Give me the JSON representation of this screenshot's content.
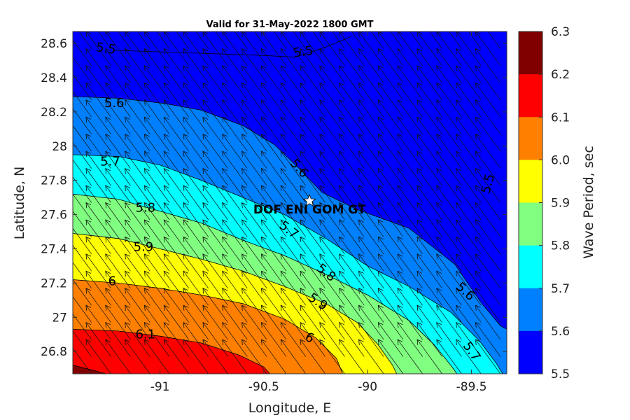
{
  "chart_data": {
    "type": "heatmap",
    "title": "Valid for 31-May-2022 1800 GMT",
    "xlabel": "Longitude, E",
    "ylabel": "Latitude, N",
    "xlim": [
      -91.42,
      -89.33
    ],
    "ylim": [
      26.67,
      28.67
    ],
    "x_ticks": [
      -91,
      -90.5,
      -90,
      -89.5
    ],
    "x_tick_labels": [
      "-91",
      "-90.5",
      "-90",
      "-89.5"
    ],
    "y_ticks": [
      26.8,
      27,
      27.2,
      27.4,
      27.6,
      27.8,
      28,
      28.2,
      28.4,
      28.6
    ],
    "y_tick_labels": [
      "26.8",
      "27",
      "27.2",
      "27.4",
      "27.6",
      "27.8",
      "28",
      "28.2",
      "28.4",
      "28.6"
    ],
    "colorbar": {
      "label": "Wave Period, sec",
      "ticks": [
        "6.3",
        "6.2",
        "6.1",
        "6.0",
        "5.9",
        "5.8",
        "5.7",
        "5.6",
        "5.5"
      ],
      "levels": [
        {
          "from": 6.2,
          "to": 6.3,
          "color": "#800000"
        },
        {
          "from": 6.1,
          "to": 6.2,
          "color": "#ff0000"
        },
        {
          "from": 6.0,
          "to": 6.1,
          "color": "#ff8000"
        },
        {
          "from": 5.9,
          "to": 6.0,
          "color": "#ffff00"
        },
        {
          "from": 5.8,
          "to": 5.9,
          "color": "#80ff80"
        },
        {
          "from": 5.7,
          "to": 5.8,
          "color": "#00ffff"
        },
        {
          "from": 5.6,
          "to": 5.7,
          "color": "#0080ff"
        },
        {
          "from": 5.5,
          "to": 5.6,
          "color": "#0000ff"
        }
      ]
    },
    "contours": [
      {
        "level": 5.6,
        "color": "#0080ff",
        "points": [
          [
            -91.42,
            28.29
          ],
          [
            -91.2,
            28.28
          ],
          [
            -90.98,
            28.25
          ],
          [
            -90.8,
            28.21
          ],
          [
            -90.6,
            28.12
          ],
          [
            -90.45,
            28.01
          ],
          [
            -90.33,
            27.87
          ],
          [
            -90.22,
            27.73
          ],
          [
            -90.05,
            27.63
          ],
          [
            -89.8,
            27.52
          ],
          [
            -89.58,
            27.31
          ],
          [
            -89.45,
            27.08
          ],
          [
            -89.36,
            26.95
          ],
          [
            -89.33,
            26.93
          ]
        ]
      },
      {
        "level": 5.7,
        "color": "#00ffff",
        "points": [
          [
            -91.42,
            27.95
          ],
          [
            -91.2,
            27.94
          ],
          [
            -91.0,
            27.89
          ],
          [
            -90.8,
            27.8
          ],
          [
            -90.6,
            27.7
          ],
          [
            -90.4,
            27.6
          ],
          [
            -90.2,
            27.46
          ],
          [
            -90.0,
            27.3
          ],
          [
            -89.8,
            27.18
          ],
          [
            -89.6,
            27.03
          ],
          [
            -89.46,
            26.86
          ],
          [
            -89.38,
            26.73
          ],
          [
            -89.35,
            26.67
          ]
        ]
      },
      {
        "level": 5.8,
        "color": "#80ff80",
        "points": [
          [
            -91.42,
            27.72
          ],
          [
            -91.2,
            27.69
          ],
          [
            -91.0,
            27.62
          ],
          [
            -90.8,
            27.55
          ],
          [
            -90.6,
            27.45
          ],
          [
            -90.4,
            27.36
          ],
          [
            -90.2,
            27.25
          ],
          [
            -90.0,
            27.13
          ],
          [
            -89.8,
            26.98
          ],
          [
            -89.68,
            26.84
          ],
          [
            -89.6,
            26.72
          ],
          [
            -89.57,
            26.67
          ]
        ]
      },
      {
        "level": 5.9,
        "color": "#ffff00",
        "points": [
          [
            -91.42,
            27.49
          ],
          [
            -91.2,
            27.46
          ],
          [
            -91.0,
            27.4
          ],
          [
            -90.8,
            27.34
          ],
          [
            -90.6,
            27.27
          ],
          [
            -90.4,
            27.18
          ],
          [
            -90.2,
            27.08
          ],
          [
            -90.05,
            26.97
          ],
          [
            -89.95,
            26.84
          ],
          [
            -89.88,
            26.72
          ],
          [
            -89.86,
            26.67
          ]
        ]
      },
      {
        "level": 6.0,
        "color": "#ff8000",
        "points": [
          [
            -91.42,
            27.22
          ],
          [
            -91.2,
            27.2
          ],
          [
            -91.0,
            27.17
          ],
          [
            -90.8,
            27.13
          ],
          [
            -90.6,
            27.08
          ],
          [
            -90.4,
            26.99
          ],
          [
            -90.25,
            26.88
          ],
          [
            -90.15,
            26.76
          ],
          [
            -90.12,
            26.67
          ]
        ]
      },
      {
        "level": 6.1,
        "color": "#ff0000",
        "points": [
          [
            -91.42,
            26.93
          ],
          [
            -91.2,
            26.92
          ],
          [
            -91.0,
            26.89
          ],
          [
            -90.8,
            26.85
          ],
          [
            -90.62,
            26.78
          ],
          [
            -90.5,
            26.71
          ],
          [
            -90.47,
            26.67
          ]
        ]
      },
      {
        "level": 6.2,
        "color": "#800000",
        "points": [
          [
            -91.42,
            26.72
          ],
          [
            -91.32,
            26.69
          ],
          [
            -91.26,
            26.67
          ]
        ]
      }
    ],
    "contour_labels": [
      {
        "text": "5.5",
        "x": -91.26,
        "y": 28.57,
        "angle": 8
      },
      {
        "text": "5.5",
        "x": -90.31,
        "y": 28.55,
        "angle": -8
      },
      {
        "text": "5.5",
        "x": -89.42,
        "y": 27.78,
        "angle": -75
      },
      {
        "text": "5.6",
        "x": -91.22,
        "y": 28.25,
        "angle": 0
      },
      {
        "text": "5.6",
        "x": -90.33,
        "y": 27.87,
        "angle": 48
      },
      {
        "text": "5.6",
        "x": -89.53,
        "y": 27.15,
        "angle": 42
      },
      {
        "text": "5.7",
        "x": -91.24,
        "y": 27.91,
        "angle": 0
      },
      {
        "text": "5.7",
        "x": -90.38,
        "y": 27.51,
        "angle": 38
      },
      {
        "text": "5.7",
        "x": -89.5,
        "y": 26.8,
        "angle": 55
      },
      {
        "text": "5.8",
        "x": -91.07,
        "y": 27.64,
        "angle": 0
      },
      {
        "text": "5.8",
        "x": -90.2,
        "y": 27.26,
        "angle": 38
      },
      {
        "text": "5.9",
        "x": -91.08,
        "y": 27.41,
        "angle": 0
      },
      {
        "text": "5.9",
        "x": -90.24,
        "y": 27.09,
        "angle": 35
      },
      {
        "text": "6",
        "x": -91.23,
        "y": 27.21,
        "angle": 0
      },
      {
        "text": "6",
        "x": -90.28,
        "y": 26.88,
        "angle": 30
      },
      {
        "text": "6.1",
        "x": -91.07,
        "y": 26.9,
        "angle": 0
      }
    ],
    "contour_5_5_line": [
      [
        -91.22,
        28.56
      ],
      [
        -90.5,
        28.53
      ],
      [
        -90.35,
        28.52
      ],
      [
        -90.2,
        28.58
      ],
      [
        -90.08,
        28.64
      ]
    ],
    "station": {
      "label": "DOF ENI GOM GT",
      "x": -90.28,
      "y": 27.68
    },
    "arrows": {
      "lon_start": -91.33,
      "lon_step": 0.0938,
      "lon_count": 22,
      "lat_start": 26.67,
      "lat_step": 0.1,
      "lat_count": 20,
      "direction": "north-northwest",
      "dx": -0.12,
      "dy": 0.2
    }
  }
}
